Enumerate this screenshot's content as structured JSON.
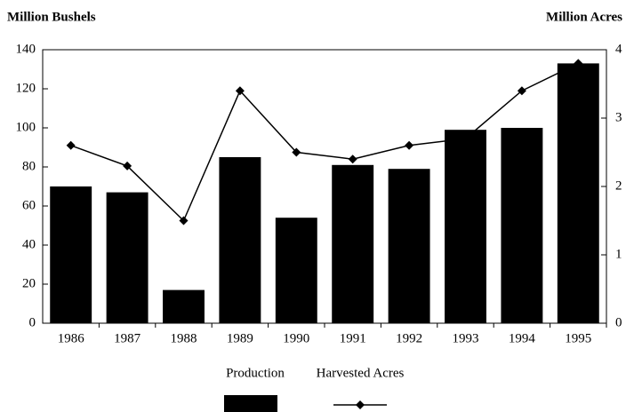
{
  "chart_data": {
    "type": "bar",
    "y_label": "Million Bushels",
    "y2_label": "Million Acres",
    "categories": [
      "1986",
      "1987",
      "1988",
      "1989",
      "1990",
      "1991",
      "1992",
      "1993",
      "1994",
      "1995"
    ],
    "series": [
      {
        "name": "Production",
        "type": "bar",
        "color": "#000000",
        "values": [
          70,
          67,
          17,
          85,
          54,
          81,
          79,
          99,
          100,
          133
        ]
      },
      {
        "name": "Harvested Acres",
        "type": "line",
        "axis": "y2",
        "color": "#000000",
        "values": [
          2.6,
          2.3,
          1.5,
          3.4,
          2.5,
          2.4,
          2.6,
          2.7,
          3.4,
          3.8
        ]
      }
    ],
    "ylim": [
      0,
      140
    ],
    "yticks": [
      0,
      20,
      40,
      60,
      80,
      100,
      120,
      140
    ],
    "y2lim": [
      0,
      4
    ],
    "y2ticks": [
      0,
      1,
      2,
      3,
      4
    ],
    "grid": false
  }
}
